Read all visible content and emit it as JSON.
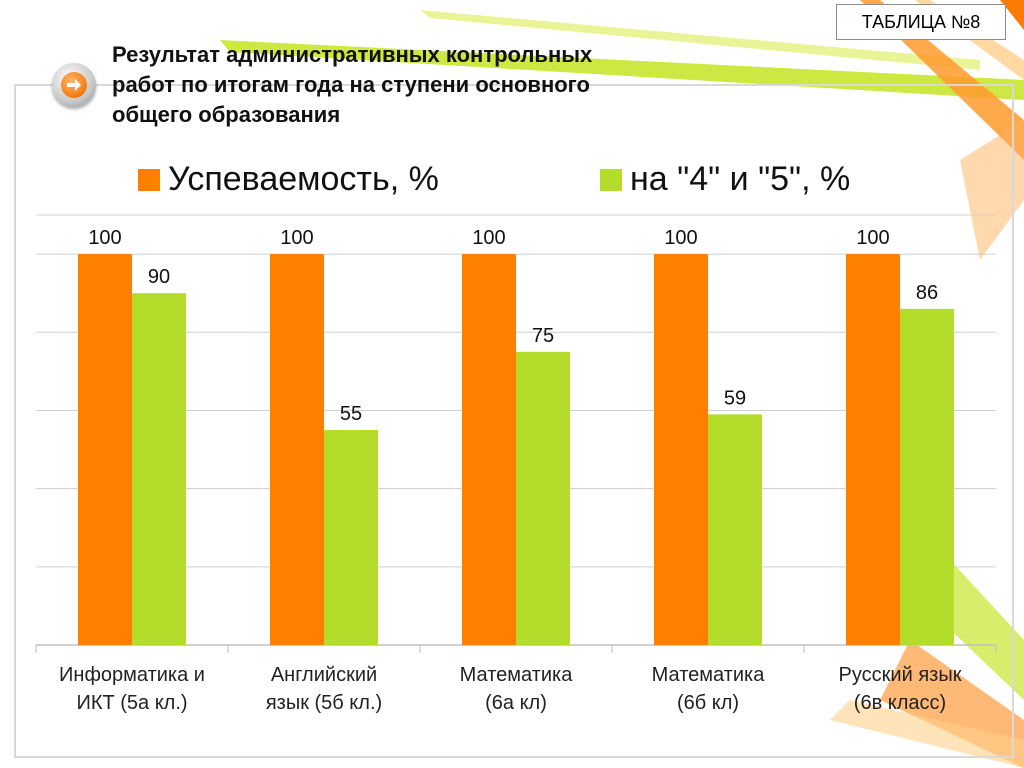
{
  "badge": {
    "text": "ТАБЛИЦА №8"
  },
  "header": {
    "title_line1": "Результат административных контрольных",
    "title_line2": "работ по итогам года на ступени основного",
    "title_line3": "общего образования"
  },
  "nav": {
    "icon": "arrow-right-icon"
  },
  "colors": {
    "series1": "#ff8000",
    "series2": "#b4dc2a",
    "grid": "#d0d0d0"
  },
  "chart_data": {
    "type": "bar",
    "title": "",
    "xlabel": "",
    "ylabel": "",
    "ylim": [
      0,
      110
    ],
    "grid": true,
    "legend_position": "top",
    "categories": [
      "Информатика и ИКТ (5а кл.)",
      "Английский язык (5б кл.)",
      "Математика (6а кл)",
      "Математика (6б кл)",
      "Русский язык (6в класс)"
    ],
    "category_lines": [
      [
        "Информатика и",
        "ИКТ (5а кл.)"
      ],
      [
        "Английский",
        "язык (5б кл.)"
      ],
      [
        "Математика",
        "(6а кл)"
      ],
      [
        "Математика",
        "(6б кл)"
      ],
      [
        "Русский язык",
        "(6в класс)"
      ]
    ],
    "series": [
      {
        "name": "Успеваемость, %",
        "values": [
          100,
          100,
          100,
          100,
          100
        ]
      },
      {
        "name": "на \"4\" и \"5\", %",
        "values": [
          90,
          55,
          75,
          59,
          86
        ]
      }
    ]
  }
}
